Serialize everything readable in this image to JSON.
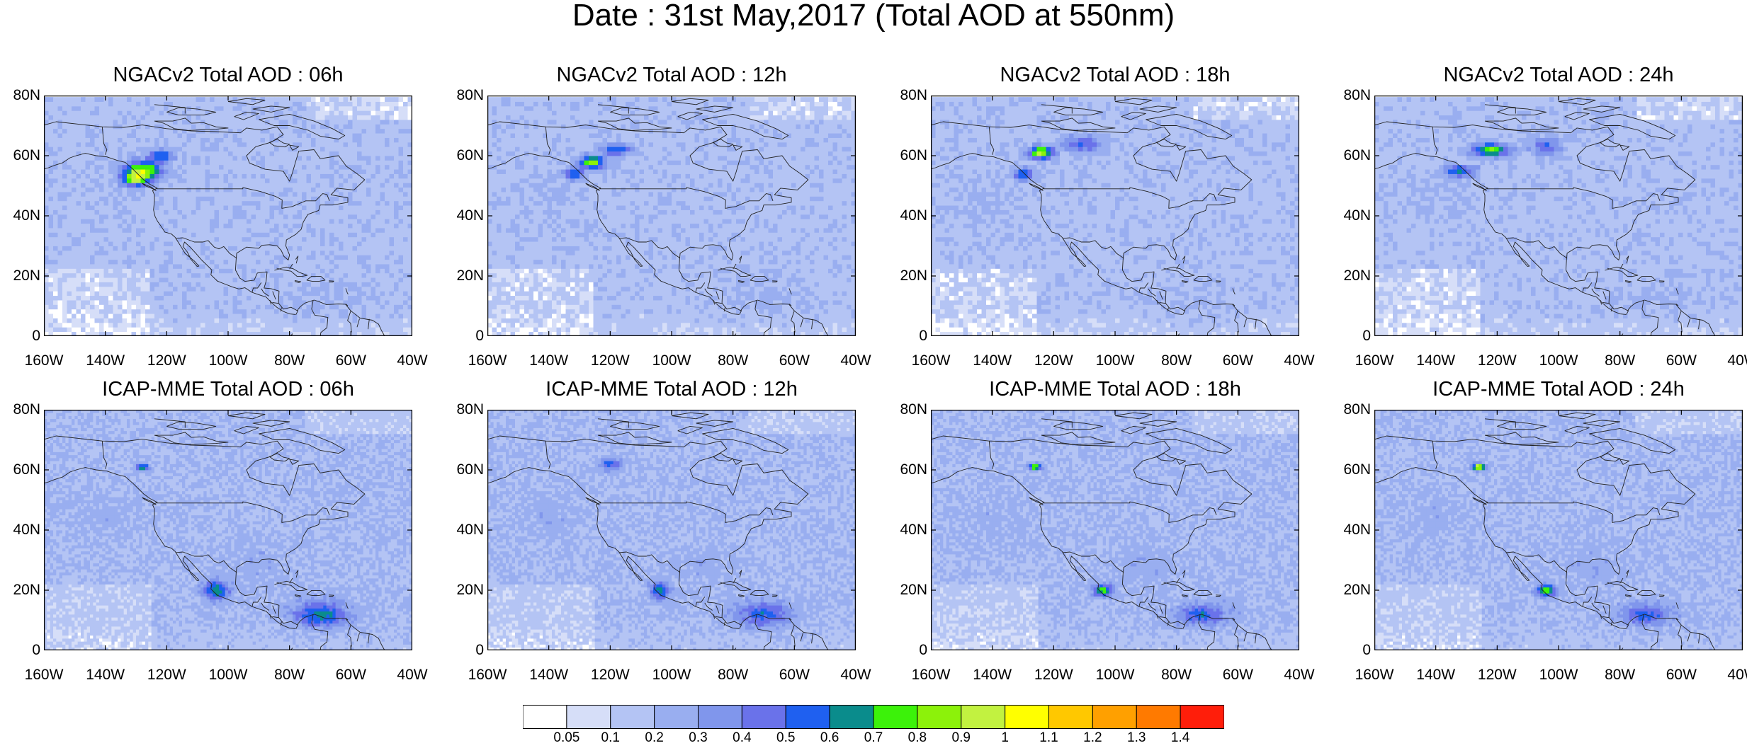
{
  "title": "Date : 31st May,2017 (Total AOD at 550nm)",
  "panels": [
    {
      "title": "NGACv2 Total AOD : 06h",
      "model": "NGACv2",
      "hour": "06h",
      "plumes": [
        [
          -128,
          55,
          6,
          3,
          0.78
        ],
        [
          -122,
          60,
          4,
          2,
          0.42
        ],
        [
          -130,
          52,
          4,
          2,
          0.5
        ]
      ]
    },
    {
      "title": "NGACv2 Total AOD : 12h",
      "model": "NGACv2",
      "hour": "12h",
      "plumes": [
        [
          -126,
          58,
          4,
          2,
          0.7
        ],
        [
          -132,
          54,
          3,
          2,
          0.45
        ],
        [
          -118,
          62,
          5,
          2,
          0.4
        ]
      ]
    },
    {
      "title": "NGACv2 Total AOD : 18h",
      "model": "NGACv2",
      "hour": "18h",
      "plumes": [
        [
          -124,
          61,
          4,
          2,
          0.78
        ],
        [
          -130,
          54,
          3,
          2,
          0.45
        ],
        [
          -110,
          64,
          6,
          3,
          0.35
        ]
      ]
    },
    {
      "title": "NGACv2 Total AOD : 24h",
      "model": "NGACv2",
      "hour": "24h",
      "plumes": [
        [
          -122,
          62,
          6,
          2,
          0.7
        ],
        [
          -132,
          55,
          5,
          2,
          0.45
        ],
        [
          -104,
          63,
          5,
          3,
          0.32
        ]
      ]
    },
    {
      "title": "ICAP-MME Total AOD : 06h",
      "model": "ICAP-MME",
      "hour": "06h",
      "plumes": [
        [
          -104,
          20,
          4,
          3,
          0.52
        ],
        [
          -128,
          61,
          2,
          1,
          0.6
        ],
        [
          -70,
          12,
          8,
          4,
          0.38
        ]
      ]
    },
    {
      "title": "ICAP-MME Total AOD : 12h",
      "model": "ICAP-MME",
      "hour": "12h",
      "plumes": [
        [
          -104,
          20,
          3,
          3,
          0.45
        ],
        [
          -120,
          62,
          4,
          2,
          0.3
        ],
        [
          -70,
          12,
          8,
          4,
          0.3
        ]
      ]
    },
    {
      "title": "ICAP-MME Total AOD : 18h",
      "model": "ICAP-MME",
      "hour": "18h",
      "plumes": [
        [
          -126,
          61,
          2,
          1,
          0.72
        ],
        [
          -104,
          20,
          3,
          2,
          0.55
        ],
        [
          -72,
          12,
          7,
          3,
          0.32
        ]
      ]
    },
    {
      "title": "ICAP-MME Total AOD : 24h",
      "model": "ICAP-MME",
      "hour": "24h",
      "plumes": [
        [
          -126,
          61,
          2,
          1,
          0.9
        ],
        [
          -104,
          20,
          3,
          2,
          0.6
        ],
        [
          -72,
          12,
          7,
          3,
          0.3
        ]
      ]
    }
  ],
  "axes": {
    "lat_ticks": [
      "80N",
      "60N",
      "40N",
      "20N",
      "0"
    ],
    "lon_ticks": [
      "160W",
      "140W",
      "120W",
      "100W",
      "80W",
      "60W",
      "40W"
    ],
    "lat_values": [
      80,
      60,
      40,
      20,
      0
    ],
    "lon_values": [
      -160,
      -140,
      -120,
      -100,
      -80,
      -60,
      -40
    ],
    "lat_range": [
      0,
      80
    ],
    "lon_range": [
      -160,
      -40
    ]
  },
  "colorbar": {
    "labels": [
      "0.05",
      "0.1",
      "0.2",
      "0.3",
      "0.4",
      "0.5",
      "0.6",
      "0.7",
      "0.8",
      "0.9",
      "1",
      "1.1",
      "1.2",
      "1.3",
      "1.4"
    ],
    "levels": [
      0.05,
      0.1,
      0.2,
      0.3,
      0.4,
      0.5,
      0.6,
      0.7,
      0.8,
      0.9,
      1,
      1.1,
      1.2,
      1.3,
      1.4
    ],
    "colors": [
      "#ffffff",
      "#d6def8",
      "#b4c4f4",
      "#99aef0",
      "#8096ec",
      "#6a72ea",
      "#1f60f0",
      "#0a8c8c",
      "#3cf20a",
      "#8cf20a",
      "#c2f240",
      "#ffff00",
      "#ffc800",
      "#ffa000",
      "#ff7a00",
      "#ff1e0a"
    ]
  }
}
